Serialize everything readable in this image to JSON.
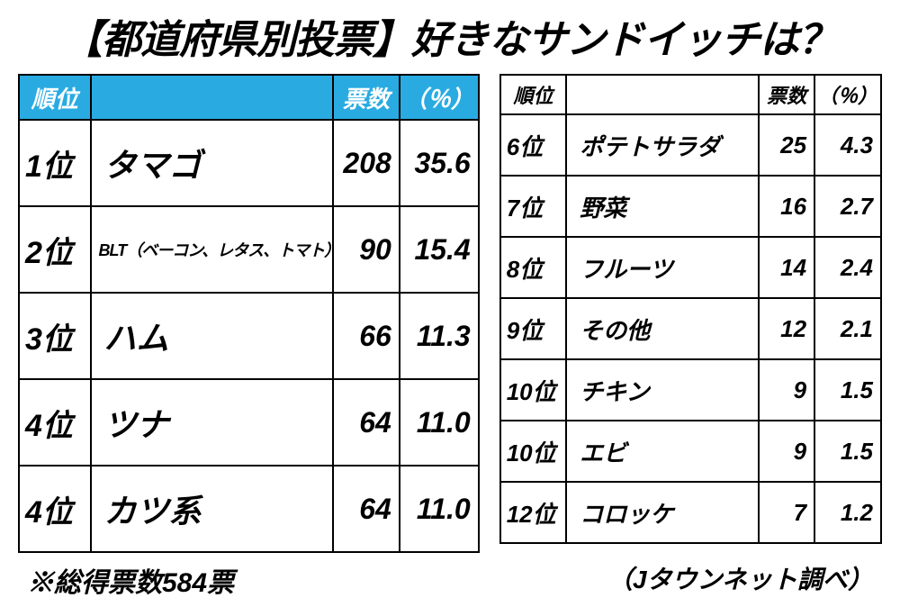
{
  "title": "【都道府県別投票】好きなサンドイッチは？",
  "headers": {
    "rank": "順位",
    "votes": "票数",
    "pct": "（％）"
  },
  "left_header_bg": "#29abe2",
  "left_header_color": "#ffffff",
  "left_rows": [
    {
      "rank": "1位",
      "name": "タマゴ",
      "votes": "208",
      "pct": "35.6",
      "small": false
    },
    {
      "rank": "2位",
      "name": "BLT（ベーコン、レタス、トマト）",
      "votes": "90",
      "pct": "15.4",
      "small": true
    },
    {
      "rank": "3位",
      "name": "ハム",
      "votes": "66",
      "pct": "11.3",
      "small": false
    },
    {
      "rank": "4位",
      "name": "ツナ",
      "votes": "64",
      "pct": "11.0",
      "small": false
    },
    {
      "rank": "4位",
      "name": "カツ系",
      "votes": "64",
      "pct": "11.0",
      "small": false
    }
  ],
  "right_rows": [
    {
      "rank": "6位",
      "name": "ポテトサラダ",
      "votes": "25",
      "pct": "4.3"
    },
    {
      "rank": "7位",
      "name": "野菜",
      "votes": "16",
      "pct": "2.7"
    },
    {
      "rank": "8位",
      "name": "フルーツ",
      "votes": "14",
      "pct": "2.4"
    },
    {
      "rank": "9位",
      "name": "その他",
      "votes": "12",
      "pct": "2.1"
    },
    {
      "rank": "10位",
      "name": "チキン",
      "votes": "9",
      "pct": "1.5"
    },
    {
      "rank": "10位",
      "name": "エビ",
      "votes": "9",
      "pct": "1.5"
    },
    {
      "rank": "12位",
      "name": "コロッケ",
      "votes": "7",
      "pct": "1.2"
    }
  ],
  "footer_left": "※総得票数584票",
  "footer_right": "（Jタウンネット調べ）"
}
